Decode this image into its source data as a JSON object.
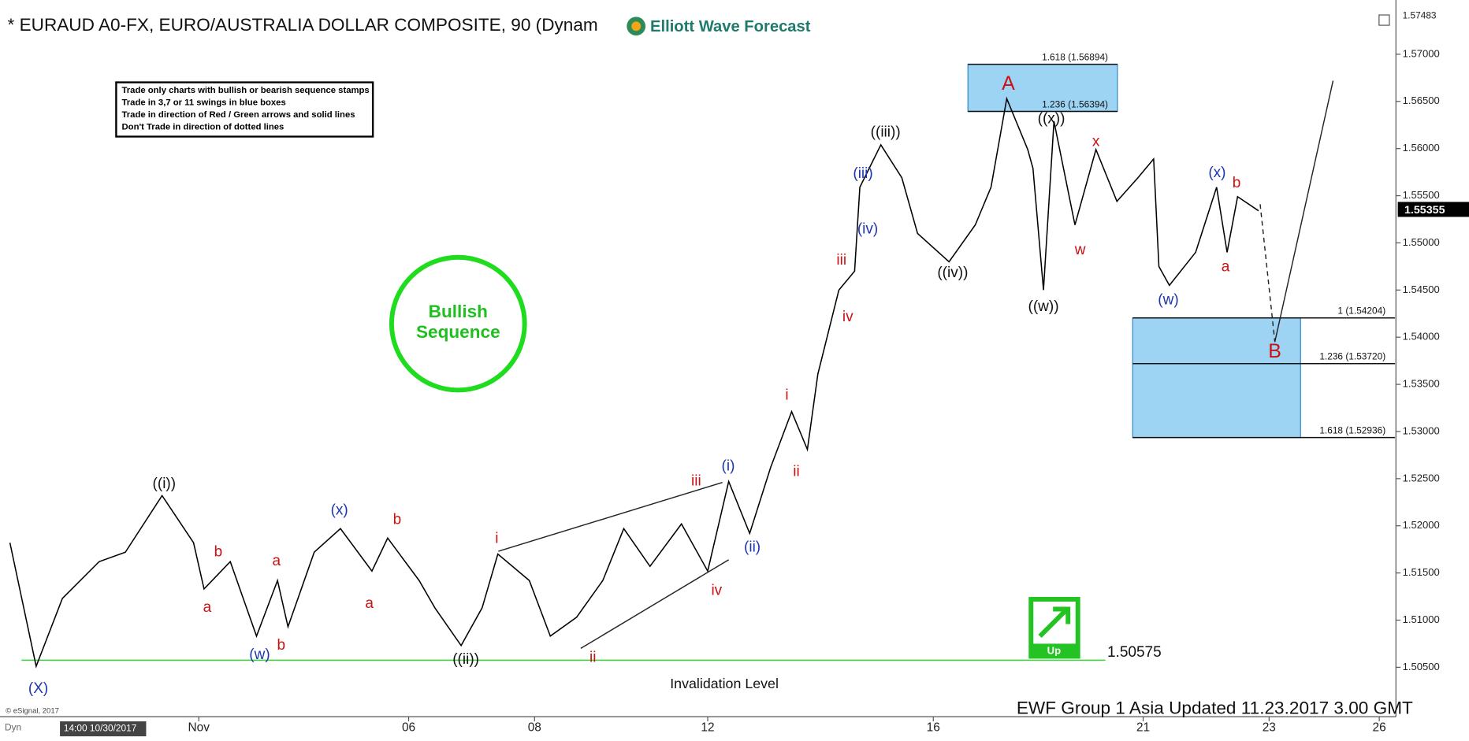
{
  "chart_data": {
    "type": "line",
    "title": "* EURAUD A0-FX, EURO/AUSTRALIA DOLLAR COMPOSITE, 90 (Dynam",
    "logo": "Elliott Wave Forecast",
    "color": "#000000",
    "x": [
      1,
      6,
      11,
      18,
      23,
      30,
      36,
      38,
      43,
      48,
      52,
      54,
      59,
      64,
      70,
      73,
      79,
      82,
      87,
      91,
      94,
      100,
      104,
      109,
      114,
      118,
      123,
      129,
      134,
      138,
      142,
      146,
      150,
      153,
      155,
      159,
      162,
      163,
      167,
      171,
      174,
      180,
      185,
      188,
      191,
      195,
      196,
      198,
      200,
      204,
      208,
      212,
      216,
      219,
      220,
      222,
      227,
      231,
      233,
      235,
      239
    ],
    "values": [
      1.5182,
      1.5051,
      1.5123,
      1.5162,
      1.5172,
      1.5232,
      1.5182,
      1.5133,
      1.5162,
      1.5083,
      1.5142,
      1.5093,
      1.5172,
      1.5197,
      1.5152,
      1.5187,
      1.5142,
      1.5113,
      1.5073,
      1.5113,
      1.517,
      1.5142,
      1.5083,
      1.5103,
      1.5142,
      1.5197,
      1.5157,
      1.5202,
      1.5152,
      1.5247,
      1.5192,
      1.5262,
      1.5321,
      1.5281,
      1.5361,
      1.545,
      1.547,
      1.5559,
      1.5604,
      1.5569,
      1.551,
      1.548,
      1.5519,
      1.5559,
      1.5653,
      1.5599,
      1.5579,
      1.545,
      1.5629,
      1.5519,
      1.5599,
      1.5544,
      1.5569,
      1.5589,
      1.5475,
      1.5455,
      1.549,
      1.5559,
      1.549,
      1.5549,
      1.5534
    ],
    "xlim": [
      0,
      265
    ],
    "xticks": [
      {
        "value": 37,
        "label": "Nov"
      },
      {
        "value": 77,
        "label": "06"
      },
      {
        "value": 101,
        "label": "08"
      },
      {
        "value": 134,
        "label": "12"
      },
      {
        "value": 177,
        "label": "16"
      },
      {
        "value": 217,
        "label": "21"
      },
      {
        "value": 241,
        "label": "23"
      },
      {
        "value": 262,
        "label": "26"
      }
    ],
    "ylim": [
      1.5,
      1.575
    ],
    "yticks": [
      {
        "value": 1.505,
        "label": "1.50500"
      },
      {
        "value": 1.51,
        "label": "1.51000"
      },
      {
        "value": 1.515,
        "label": "1.51500"
      },
      {
        "value": 1.52,
        "label": "1.52000"
      },
      {
        "value": 1.525,
        "label": "1.52500"
      },
      {
        "value": 1.53,
        "label": "1.53000"
      },
      {
        "value": 1.535,
        "label": "1.53500"
      },
      {
        "value": 1.54,
        "label": "1.54000"
      },
      {
        "value": 1.545,
        "label": "1.54500"
      },
      {
        "value": 1.55,
        "label": "1.55000"
      },
      {
        "value": 1.555,
        "label": "1.55500"
      },
      {
        "value": 1.56,
        "label": "1.56000"
      },
      {
        "value": 1.565,
        "label": "1.56500"
      },
      {
        "value": 1.57,
        "label": "1.57000"
      }
    ],
    "top_price": 1.57483,
    "last_price": 1.55355,
    "annotations": [
      {
        "text": "(X)",
        "x": 6.4,
        "y": 1.5027,
        "color": "#1f35b0"
      },
      {
        "text": "((i))",
        "x": 30.4,
        "y": 1.5244,
        "color": "#111111"
      },
      {
        "text": "b",
        "x": 40.7,
        "y": 1.5172,
        "color": "#cc1111"
      },
      {
        "text": "a",
        "x": 38.6,
        "y": 1.5113,
        "color": "#cc1111"
      },
      {
        "text": "(w)",
        "x": 48.6,
        "y": 1.5063,
        "color": "#1f35b0"
      },
      {
        "text": "b",
        "x": 52.7,
        "y": 1.5073,
        "color": "#cc1111"
      },
      {
        "text": "a",
        "x": 51.8,
        "y": 1.5162,
        "color": "#cc1111"
      },
      {
        "text": "(x)",
        "x": 63.8,
        "y": 1.5216,
        "color": "#1f35b0"
      },
      {
        "text": "b",
        "x": 74.8,
        "y": 1.5206,
        "color": "#cc1111"
      },
      {
        "text": "a",
        "x": 69.5,
        "y": 1.5117,
        "color": "#cc1111"
      },
      {
        "text": "((ii))",
        "x": 87.9,
        "y": 1.5058,
        "color": "#111111"
      },
      {
        "text": "i",
        "x": 93.8,
        "y": 1.5186,
        "color": "#cc1111"
      },
      {
        "text": "ii",
        "x": 112.1,
        "y": 1.506,
        "color": "#cc1111"
      },
      {
        "text": "iii",
        "x": 131.8,
        "y": 1.5247,
        "color": "#cc1111"
      },
      {
        "text": "(i)",
        "x": 137.9,
        "y": 1.5263,
        "color": "#1f35b0"
      },
      {
        "text": "iv",
        "x": 135.7,
        "y": 1.5131,
        "color": "#cc1111"
      },
      {
        "text": "(ii)",
        "x": 142.5,
        "y": 1.5177,
        "color": "#1f35b0"
      },
      {
        "text": "i",
        "x": 149.1,
        "y": 1.5338,
        "color": "#cc1111"
      },
      {
        "text": "ii",
        "x": 150.9,
        "y": 1.5257,
        "color": "#cc1111"
      },
      {
        "text": "iii",
        "x": 159.5,
        "y": 1.5481,
        "color": "#cc1111"
      },
      {
        "text": "iv",
        "x": 160.7,
        "y": 1.5421,
        "color": "#cc1111"
      },
      {
        "text": "(iii)",
        "x": 163.6,
        "y": 1.5573,
        "color": "#1f35b0"
      },
      {
        "text": "(iv)",
        "x": 164.5,
        "y": 1.5514,
        "color": "#1f35b0"
      },
      {
        "text": "((iii))",
        "x": 167.9,
        "y": 1.5617,
        "color": "#111111"
      },
      {
        "text": "((iv))",
        "x": 180.7,
        "y": 1.5468,
        "color": "#111111"
      },
      {
        "text": "A",
        "x": 191.3,
        "y": 1.5668,
        "color": "#cc1111",
        "big": true
      },
      {
        "text": "((x))",
        "x": 199.5,
        "y": 1.5631,
        "color": "#111111"
      },
      {
        "text": "((w))",
        "x": 198,
        "y": 1.5432,
        "color": "#111111"
      },
      {
        "text": "x",
        "x": 208,
        "y": 1.5607,
        "color": "#cc1111"
      },
      {
        "text": "w",
        "x": 205,
        "y": 1.5492,
        "color": "#cc1111"
      },
      {
        "text": "(w)",
        "x": 221.8,
        "y": 1.5439,
        "color": "#1f35b0"
      },
      {
        "text": "(x)",
        "x": 231.1,
        "y": 1.5574,
        "color": "#1f35b0"
      },
      {
        "text": "b",
        "x": 234.8,
        "y": 1.5563,
        "color": "#cc1111"
      },
      {
        "text": "a",
        "x": 232.7,
        "y": 1.5474,
        "color": "#cc1111"
      },
      {
        "text": "B",
        "x": 242.1,
        "y": 1.5384,
        "color": "#cc1111",
        "big": true
      }
    ],
    "trendlines": [
      {
        "x": [
          94.1,
          136.8
        ],
        "y": [
          1.5173,
          1.5246
        ],
        "dashed": false
      },
      {
        "x": [
          109.8,
          138
        ],
        "y": [
          1.507,
          1.5164
        ],
        "dashed": false
      },
      {
        "x": [
          239.3,
          242.1
        ],
        "y": [
          1.5541,
          1.5395
        ],
        "dashed": true
      },
      {
        "x": [
          242.1,
          253.2
        ],
        "y": [
          1.5395,
          1.5672
        ],
        "dashed": false
      }
    ],
    "fib_boxes": [
      {
        "xlim": [
          183.6,
          212.1
        ],
        "line_xlim": [
          183.6,
          212.1
        ],
        "levels": [
          {
            "value": 1.56894,
            "label": "1.618 (1.56894)"
          },
          {
            "value": 1.56394,
            "label": "1.236 (1.56394)"
          }
        ]
      },
      {
        "xlim": [
          215,
          247
        ],
        "line_xlim": [
          215,
          265
        ],
        "levels": [
          {
            "value": 1.54204,
            "label": "1 (1.54204)"
          },
          {
            "value": 1.5372,
            "label": "1.236 (1.53720)"
          },
          {
            "value": 1.52936,
            "label": "1.618 (1.52936)"
          }
        ]
      }
    ],
    "invalidation": {
      "price": 1.50575,
      "text": "Invalidation Level",
      "x": [
        0,
        209.8
      ]
    },
    "rules_box": [
      "Trade only charts with bullish or bearish sequence stamps",
      "Trade in 3,7 or 11 swings in blue boxes",
      "Trade in direction of Red / Green arrows and solid lines",
      "Don't Trade in direction of dotted lines"
    ],
    "badge": [
      "Bullish",
      "Sequence"
    ],
    "up_icon": "Up",
    "footer": "EWF Group 1 Asia Updated 11.23.2017 3.00 GMT",
    "copyright": "© eSignal, 2017",
    "start_time": "14:00 10/30/2017",
    "dyn": "Dyn"
  }
}
